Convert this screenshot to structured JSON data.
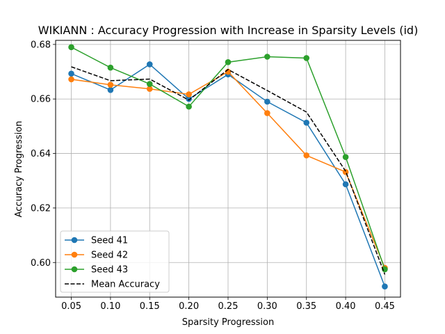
{
  "chart_data": {
    "type": "line",
    "title": "WIKIANN : Accuracy Progression with Increase in Sparsity Levels (id)",
    "xlabel": "Sparsity Progression",
    "ylabel": "Accuracy Progression",
    "x": [
      0.05,
      0.1,
      0.15,
      0.2,
      0.25,
      0.3,
      0.35,
      0.4,
      0.45
    ],
    "xticks": [
      "0.05",
      "0.10",
      "0.15",
      "0.20",
      "0.25",
      "0.30",
      "0.35",
      "0.40",
      "0.45"
    ],
    "yticks": [
      "0.60",
      "0.62",
      "0.64",
      "0.66",
      "0.68"
    ],
    "ytick_values": [
      0.6,
      0.62,
      0.64,
      0.66,
      0.68
    ],
    "xlim": [
      0.03,
      0.47
    ],
    "ylim": [
      0.5873,
      0.6815
    ],
    "grid": true,
    "legend_position": "lower-left",
    "series": [
      {
        "name": "Seed 41",
        "color": "#1f77b4",
        "style": "solid-marker",
        "values": [
          0.6693,
          0.6633,
          0.6727,
          0.66,
          0.669,
          0.659,
          0.6513,
          0.6287,
          0.5912
        ]
      },
      {
        "name": "Seed 42",
        "color": "#ff7f0e",
        "style": "solid-marker",
        "values": [
          0.6672,
          0.6652,
          0.6637,
          0.6617,
          0.67,
          0.6548,
          0.6393,
          0.6332,
          0.598
        ]
      },
      {
        "name": "Seed 43",
        "color": "#2ca02c",
        "style": "solid-marker",
        "values": [
          0.679,
          0.6715,
          0.6655,
          0.6572,
          0.6735,
          0.6755,
          0.675,
          0.6387,
          0.5975
        ]
      },
      {
        "name": "Mean Accuracy",
        "color": "#000000",
        "style": "dashed",
        "values": [
          0.6718,
          0.6667,
          0.6673,
          0.6596,
          0.6708,
          0.6631,
          0.6552,
          0.6335,
          0.5956
        ]
      }
    ]
  }
}
